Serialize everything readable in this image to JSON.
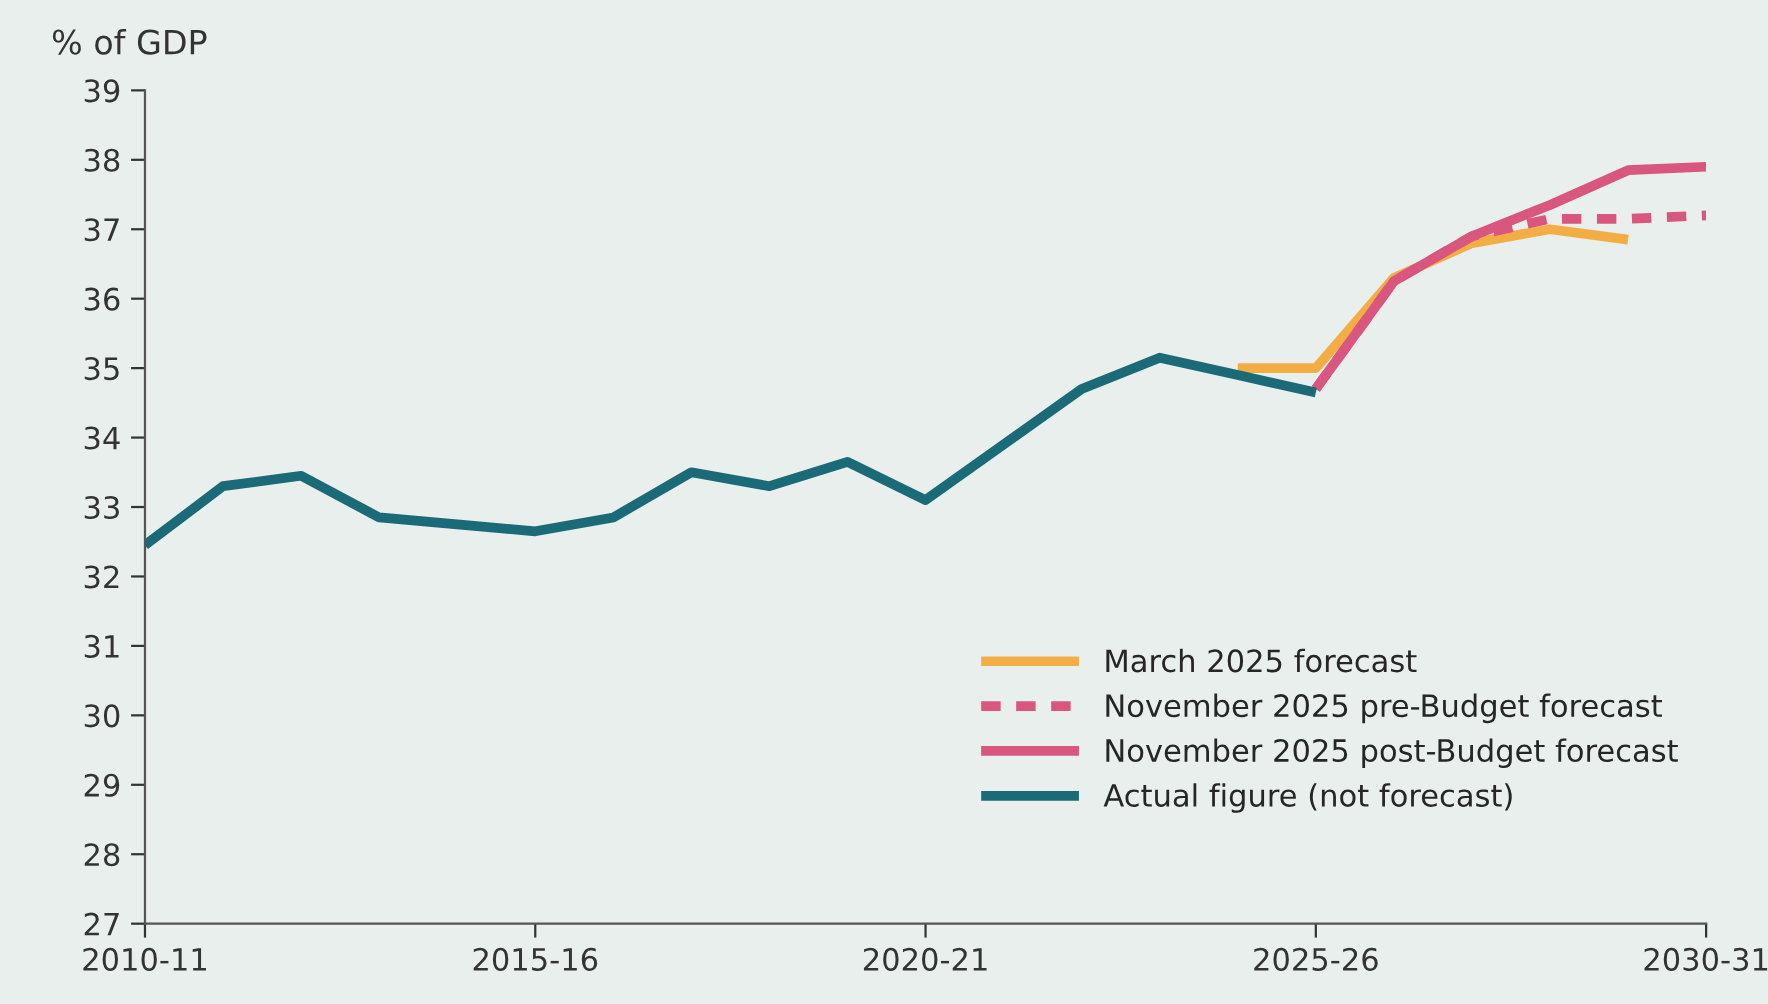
{
  "chart_data": {
    "type": "line",
    "ylabel": "% of GDP",
    "categories": [
      "2010-11",
      null,
      null,
      null,
      null,
      "2015-16",
      null,
      null,
      null,
      null,
      "2020-21",
      null,
      null,
      null,
      null,
      "2025-26",
      null,
      null,
      null,
      null,
      "2030-31"
    ],
    "ylim": [
      27,
      39
    ],
    "yticks": [
      27,
      28,
      29,
      30,
      31,
      32,
      33,
      34,
      35,
      36,
      37,
      38,
      39
    ],
    "grid": false,
    "legend": "bottom right",
    "marker": "none",
    "series": [
      {
        "name": "March 2025 forecast",
        "color": "#f2ad45",
        "line_style": "solid",
        "values": [
          null,
          null,
          null,
          null,
          null,
          null,
          null,
          null,
          null,
          null,
          null,
          null,
          null,
          null,
          35.0,
          35.0,
          36.3,
          36.8,
          37.0,
          36.85,
          null
        ]
      },
      {
        "name": "November 2025 pre-Budget forecast",
        "color": "#d9567f",
        "line_style": "dashed",
        "values": [
          null,
          null,
          null,
          null,
          null,
          null,
          null,
          null,
          null,
          null,
          null,
          null,
          null,
          null,
          null,
          34.7,
          36.25,
          36.9,
          37.15,
          37.15,
          37.2
        ]
      },
      {
        "name": "November 2025 post-Budget forecast",
        "color": "#d9567f",
        "line_style": "solid",
        "values": [
          null,
          null,
          null,
          null,
          null,
          null,
          null,
          null,
          null,
          null,
          null,
          null,
          null,
          null,
          null,
          34.7,
          36.25,
          36.9,
          37.35,
          37.85,
          37.9
        ]
      },
      {
        "name": "Actual figure (not forecast)",
        "color": "#1b6a78",
        "line_style": "solid",
        "values": [
          32.45,
          33.3,
          33.45,
          32.85,
          32.75,
          32.65,
          32.85,
          33.5,
          33.3,
          33.65,
          33.1,
          33.9,
          34.7,
          35.15,
          34.9,
          34.65,
          null,
          null,
          null,
          null,
          null
        ]
      }
    ]
  }
}
